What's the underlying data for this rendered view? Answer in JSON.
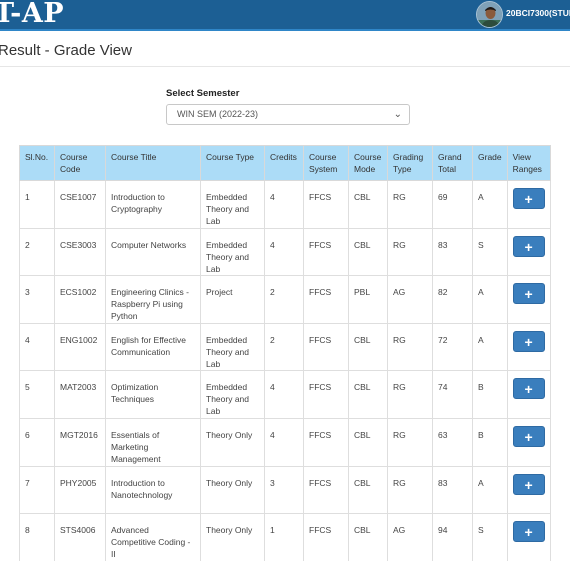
{
  "header": {
    "brand": "T-AP",
    "user_id": "20BCI7300(STUDE",
    "avatar_icon": "student-photo"
  },
  "page": {
    "title": "Result - Grade View"
  },
  "semester": {
    "label": "Select Semester",
    "selected": "WIN SEM (2022-23)"
  },
  "table": {
    "columns": [
      "Sl.No.",
      "Course Code",
      "Course Title",
      "Course Type",
      "Credits",
      "Course System",
      "Course Mode",
      "Grading Type",
      "Grand Total",
      "Grade",
      "View Ranges"
    ],
    "rows": [
      {
        "sl": "1",
        "code": "CSE1007",
        "title": "Introduction to Cryptography",
        "type": "Embedded Theory and Lab",
        "credits": "4",
        "system": "FFCS",
        "mode": "CBL",
        "grading": "RG",
        "total": "69",
        "grade": "A",
        "button": "+"
      },
      {
        "sl": "2",
        "code": "CSE3003",
        "title": "Computer Networks",
        "type": "Embedded Theory and Lab",
        "credits": "4",
        "system": "FFCS",
        "mode": "CBL",
        "grading": "RG",
        "total": "83",
        "grade": "S",
        "button": "+"
      },
      {
        "sl": "3",
        "code": "ECS1002",
        "title": "Engineering Clinics - Raspberry Pi using Python",
        "type": "Project",
        "credits": "2",
        "system": "FFCS",
        "mode": "PBL",
        "grading": "AG",
        "total": "82",
        "grade": "A",
        "button": "+"
      },
      {
        "sl": "4",
        "code": "ENG1002",
        "title": "English for Effective Communication",
        "type": "Embedded Theory and Lab",
        "credits": "2",
        "system": "FFCS",
        "mode": "CBL",
        "grading": "RG",
        "total": "72",
        "grade": "A",
        "button": "+"
      },
      {
        "sl": "5",
        "code": "MAT2003",
        "title": "Optimization Techniques",
        "type": "Embedded Theory and Lab",
        "credits": "4",
        "system": "FFCS",
        "mode": "CBL",
        "grading": "RG",
        "total": "74",
        "grade": "B",
        "button": "+"
      },
      {
        "sl": "6",
        "code": "MGT2016",
        "title": "Essentials of Marketing Management",
        "type": "Theory Only",
        "credits": "4",
        "system": "FFCS",
        "mode": "CBL",
        "grading": "RG",
        "total": "63",
        "grade": "B",
        "button": "+"
      },
      {
        "sl": "7",
        "code": "PHY2005",
        "title": "Introduction to Nanotechnology",
        "type": "Theory Only",
        "credits": "3",
        "system": "FFCS",
        "mode": "CBL",
        "grading": "RG",
        "total": "83",
        "grade": "A",
        "button": "+"
      },
      {
        "sl": "8",
        "code": "STS4006",
        "title": "Advanced Competitive Coding - II",
        "type": "Theory Only",
        "credits": "1",
        "system": "FFCS",
        "mode": "CBL",
        "grading": "AG",
        "total": "94",
        "grade": "S",
        "button": "+"
      }
    ]
  },
  "colors": {
    "header_bg": "#1c5f94",
    "table_header_bg": "#acdcf7",
    "button_bg": "#3a7ebd"
  }
}
